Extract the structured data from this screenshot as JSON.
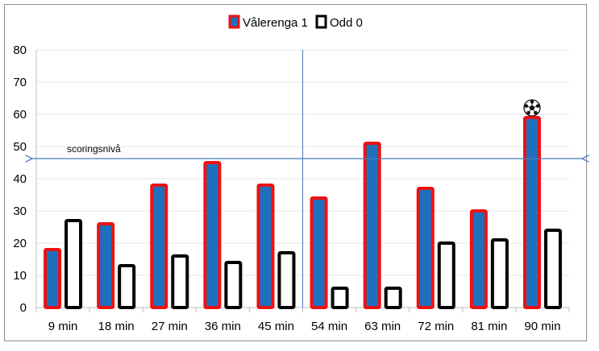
{
  "chart_data": {
    "type": "bar",
    "categories": [
      "9 min",
      "18 min",
      "27 min",
      "36 min",
      "45 min",
      "54 min",
      "63 min",
      "72 min",
      "81 min",
      "90 min"
    ],
    "series": [
      {
        "name": "Vålerenga 1",
        "values": [
          18,
          26,
          38,
          45,
          38,
          34,
          51,
          37,
          30,
          59
        ],
        "fill": "#1f6fbf",
        "stroke": "#ee1111"
      },
      {
        "name": "Odd 0",
        "values": [
          27,
          13,
          16,
          14,
          17,
          6,
          6,
          20,
          21,
          24
        ],
        "fill": "#ffffff",
        "stroke": "#000000"
      }
    ],
    "ylim": [
      0,
      80
    ],
    "yticks": [
      0,
      10,
      20,
      30,
      40,
      50,
      60,
      70,
      80
    ],
    "grid": true,
    "legend": "top-center",
    "annotations": {
      "threshold_label": "scoringsnivå",
      "threshold_value": 45,
      "divider_after_category": "45 min",
      "goal_marker_category": "90 min",
      "goal_marker_icon": "soccer-ball-icon"
    }
  }
}
